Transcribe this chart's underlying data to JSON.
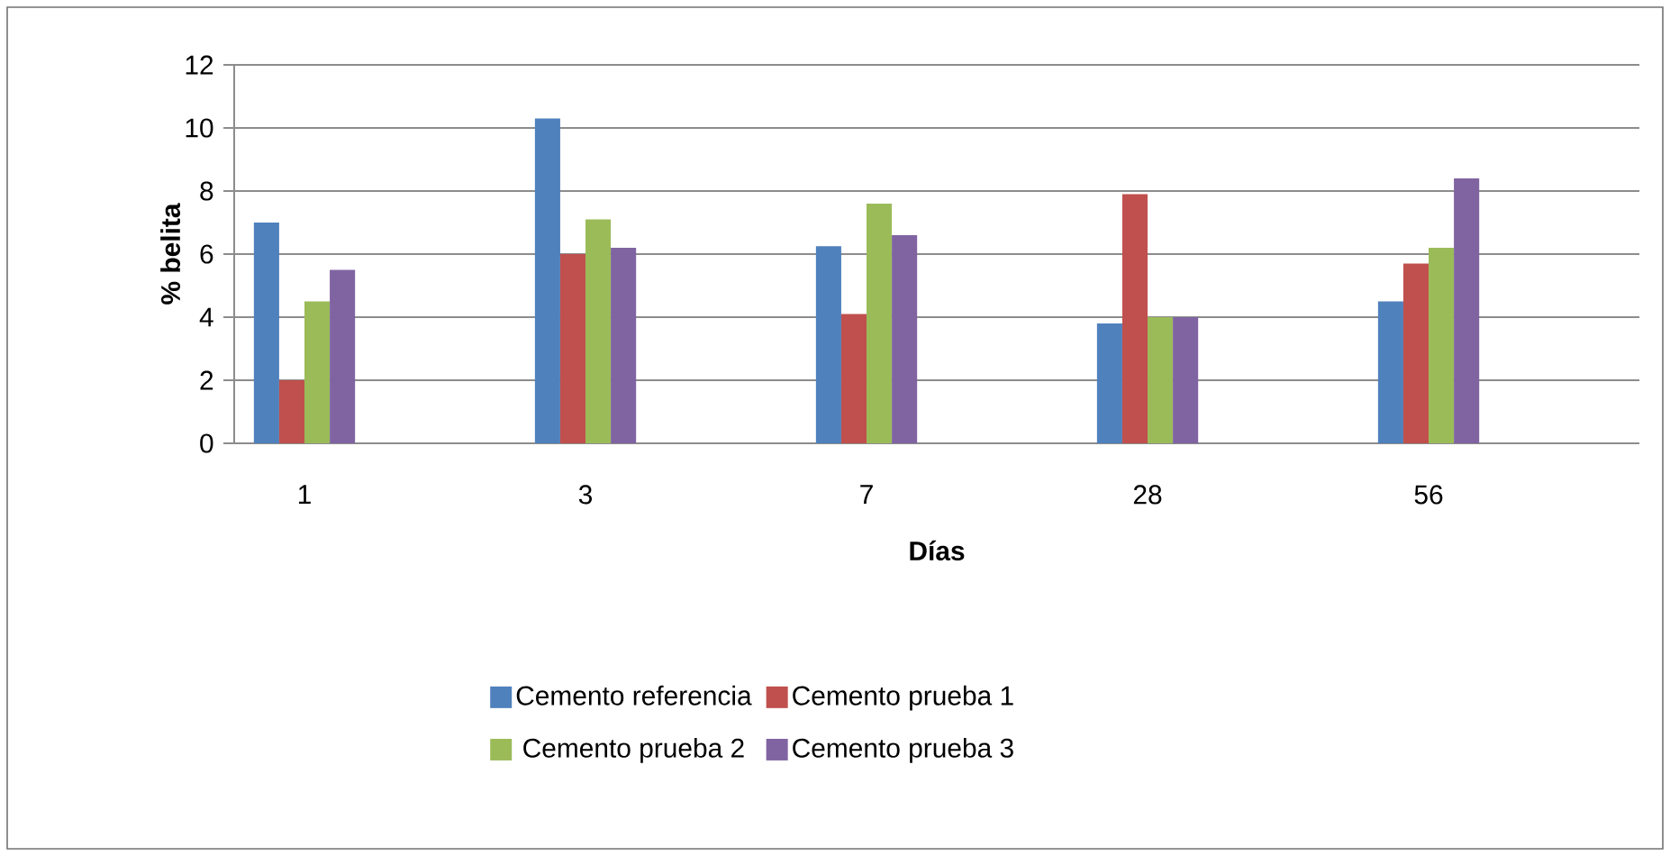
{
  "chart_data": {
    "type": "bar",
    "xlabel": "Días",
    "ylabel": "% belita",
    "categories": [
      "1",
      null,
      "3",
      null,
      "7",
      null,
      "28",
      null,
      "56",
      null
    ],
    "series": [
      {
        "name": "Cemento referencia",
        "color": "#4f81bd",
        "values": [
          7.0,
          null,
          10.3,
          null,
          6.25,
          null,
          3.8,
          null,
          4.5,
          null
        ]
      },
      {
        "name": "Cemento prueba 1",
        "color": "#c0504d",
        "values": [
          2.0,
          null,
          6.0,
          null,
          4.1,
          null,
          7.9,
          null,
          5.7,
          null
        ]
      },
      {
        "name": "Cemento prueba 2",
        "color": "#9bbb59",
        "values": [
          4.5,
          null,
          7.1,
          null,
          7.6,
          null,
          4.0,
          null,
          6.2,
          null
        ]
      },
      {
        "name": "Cemento prueba 3",
        "color": "#8064a2",
        "values": [
          5.5,
          null,
          6.2,
          null,
          6.6,
          null,
          4.0,
          null,
          8.4,
          null
        ]
      }
    ],
    "ylim": [
      0,
      12
    ],
    "yticks": [
      0,
      2,
      4,
      6,
      8,
      10,
      12
    ],
    "grid": "y",
    "legend": "bottom"
  }
}
